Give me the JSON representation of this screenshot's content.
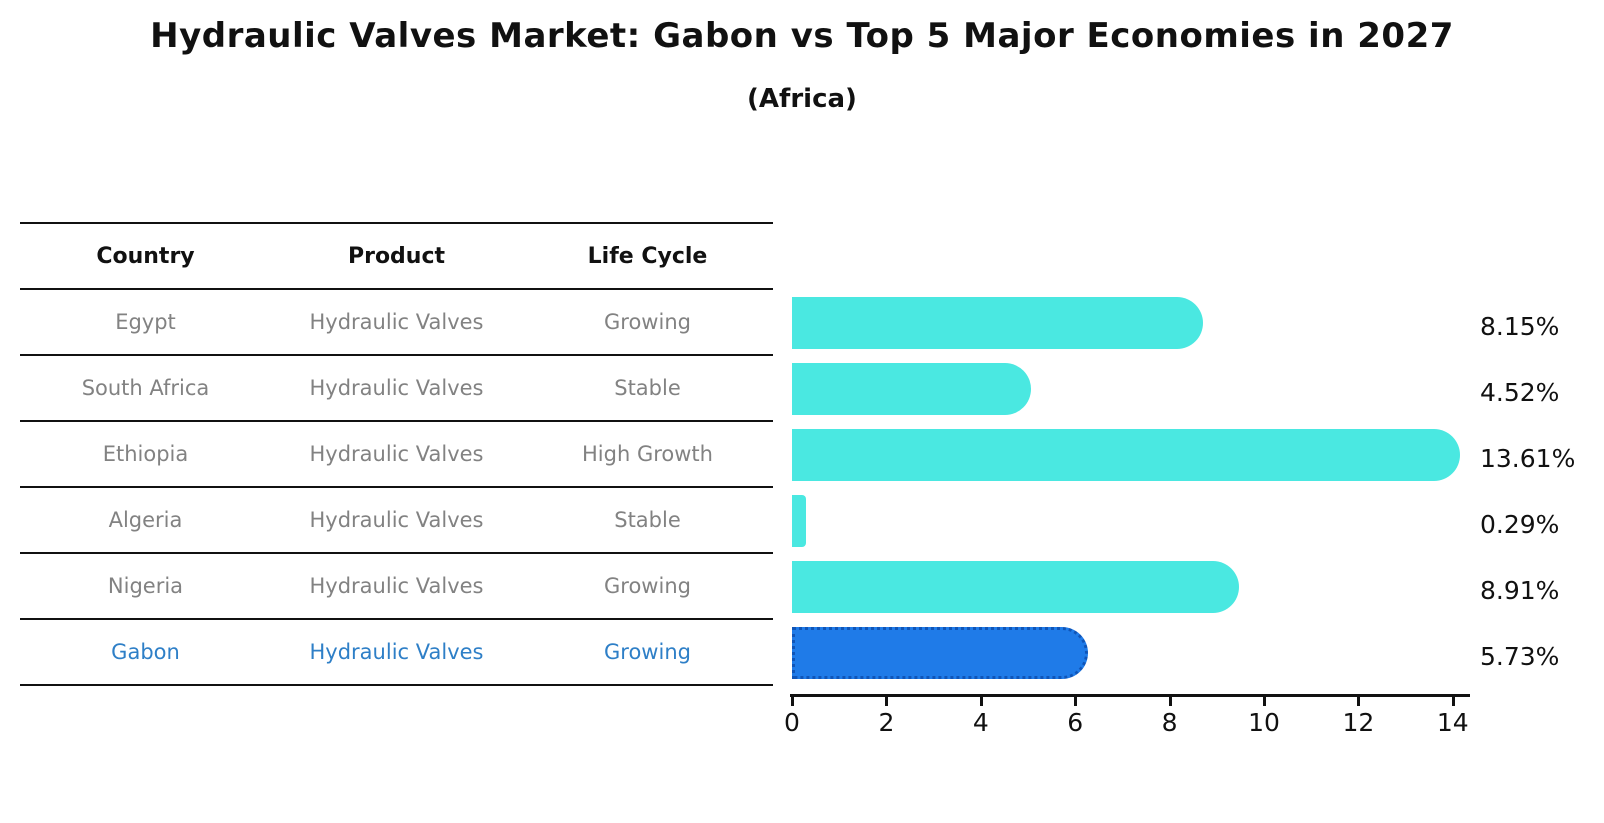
{
  "title": "Hydraulic Valves Market: Gabon vs Top 5 Major Economies in 2027",
  "subtitle": "(Africa)",
  "table": {
    "headers": [
      "Country",
      "Product",
      "Life Cycle"
    ],
    "rows": [
      {
        "country": "Egypt",
        "product": "Hydraulic Valves",
        "life_cycle": "Growing",
        "highlight": false
      },
      {
        "country": "South Africa",
        "product": "Hydraulic Valves",
        "life_cycle": "Stable",
        "highlight": false
      },
      {
        "country": "Ethiopia",
        "product": "Hydraulic Valves",
        "life_cycle": "High Growth",
        "highlight": false
      },
      {
        "country": "Algeria",
        "product": "Hydraulic Valves",
        "life_cycle": "Stable",
        "highlight": false
      },
      {
        "country": "Nigeria",
        "product": "Hydraulic Valves",
        "life_cycle": "Growing",
        "highlight": false
      },
      {
        "country": "Gabon",
        "product": "Hydraulic Valves",
        "life_cycle": "Growing",
        "highlight": true
      }
    ]
  },
  "chart_data": {
    "type": "bar",
    "orientation": "horizontal",
    "title": "Hydraulic Valves Market: Gabon vs Top 5 Major Economies in 2027",
    "subtitle": "(Africa)",
    "categories": [
      "Egypt",
      "South Africa",
      "Ethiopia",
      "Algeria",
      "Nigeria",
      "Gabon"
    ],
    "values": [
      8.15,
      4.52,
      13.61,
      0.29,
      8.91,
      5.73
    ],
    "value_labels": [
      "8.15%",
      "4.52%",
      "13.61%",
      "0.29%",
      "8.91%",
      "5.73%"
    ],
    "xlim": [
      0,
      14
    ],
    "x_ticks": [
      "0",
      "2",
      "4",
      "6",
      "8",
      "10",
      "12",
      "14"
    ],
    "grid": false,
    "legend": false,
    "highlight_index": 5,
    "colors": {
      "bar": "#4ae8e1",
      "highlight_bar": "#1f7be8",
      "highlight_border": "#0f55b8",
      "highlight_text": "#2e7fc7",
      "table_text": "#828282",
      "axis_text": "#111111"
    }
  }
}
